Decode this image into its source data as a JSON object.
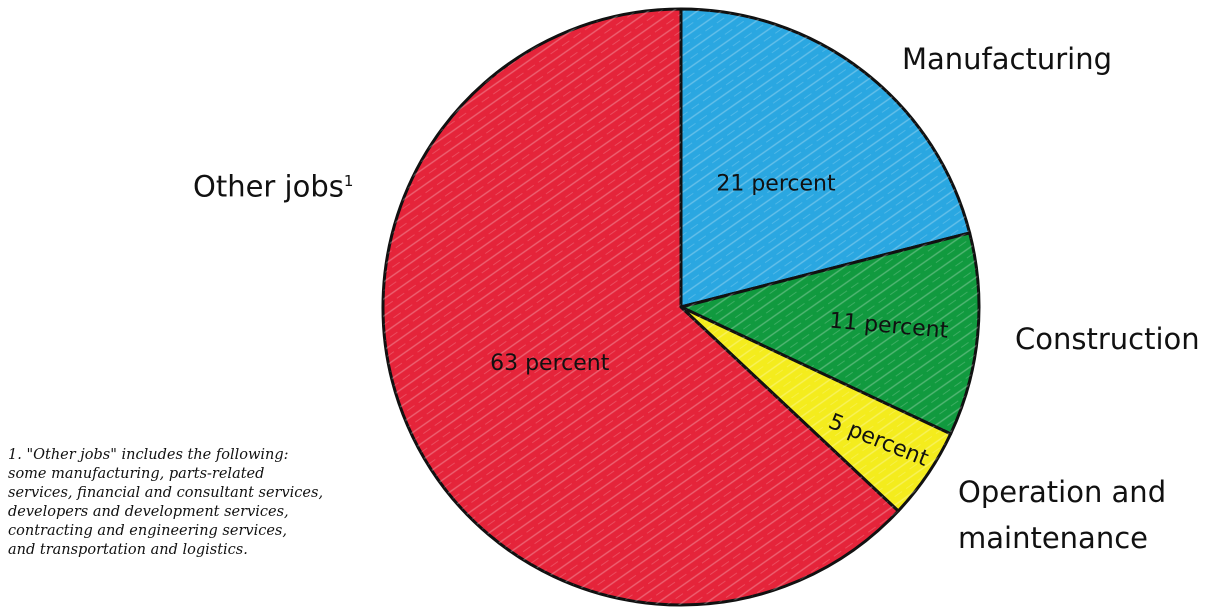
{
  "chart_data": {
    "type": "pie",
    "slices": [
      {
        "name": "Manufacturing",
        "value": 21,
        "data_label": "21 percent",
        "color": "#2aa7e1"
      },
      {
        "name": "Construction",
        "value": 11,
        "data_label": "11 percent",
        "color": "#119a3f"
      },
      {
        "name": "Operation and maintenance",
        "value": 5,
        "data_label": "5 percent",
        "color": "#f4ec1d"
      },
      {
        "name": "Other jobs",
        "value": 63,
        "data_label": "63 percent",
        "color": "#e5243a"
      }
    ],
    "labels": {
      "manufacturing": "Manufacturing",
      "construction": "Construction",
      "operation_line1": "Operation and",
      "operation_line2": "maintenance",
      "other": "Other jobs",
      "other_superscript": "1"
    },
    "footnote_lines": [
      "1. \"Other jobs\" includes the following:",
      "some manufacturing, parts-related",
      "services, financial and consultant services,",
      "developers and development services,",
      "contracting and engineering services,",
      "and transportation and logistics."
    ]
  }
}
